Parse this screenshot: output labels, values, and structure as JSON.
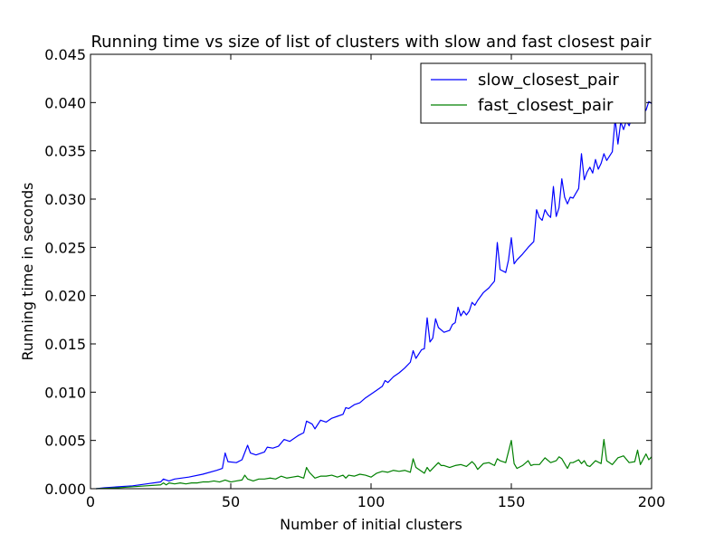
{
  "chart_data": {
    "type": "line",
    "title": "Running time vs size of list of clusters with slow and fast closest pair",
    "xlabel": "Number of initial clusters",
    "ylabel": "Running time in seconds",
    "xlim": [
      0,
      200
    ],
    "ylim": [
      0,
      0.045
    ],
    "xticks": [
      0,
      50,
      100,
      150,
      200
    ],
    "xtick_labels": [
      "0",
      "50",
      "100",
      "150",
      "200"
    ],
    "yticks": [
      0,
      0.005,
      0.01,
      0.015,
      0.02,
      0.025,
      0.03,
      0.035,
      0.04,
      0.045
    ],
    "ytick_labels": [
      "0.000",
      "0.005",
      "0.010",
      "0.015",
      "0.020",
      "0.025",
      "0.030",
      "0.035",
      "0.040",
      "0.045"
    ],
    "grid": false,
    "legend": "top-right",
    "series": [
      {
        "name": "slow_closest_pair",
        "color": "#0000ff",
        "points": [
          [
            2,
            0
          ],
          [
            5,
            0.0001
          ],
          [
            10,
            0.0002
          ],
          [
            15,
            0.0003
          ],
          [
            20,
            0.0005
          ],
          [
            25,
            0.0007
          ],
          [
            26,
            0.001
          ],
          [
            27,
            0.0009
          ],
          [
            28,
            0.0008
          ],
          [
            30,
            0.001
          ],
          [
            35,
            0.0012
          ],
          [
            40,
            0.0015
          ],
          [
            45,
            0.0019
          ],
          [
            47,
            0.0021
          ],
          [
            48,
            0.0037
          ],
          [
            49,
            0.0028
          ],
          [
            52,
            0.0027
          ],
          [
            54,
            0.003
          ],
          [
            56,
            0.0045
          ],
          [
            57,
            0.0037
          ],
          [
            59,
            0.0035
          ],
          [
            62,
            0.0038
          ],
          [
            63,
            0.0043
          ],
          [
            65,
            0.0042
          ],
          [
            67,
            0.0044
          ],
          [
            69,
            0.0051
          ],
          [
            71,
            0.0049
          ],
          [
            74,
            0.0055
          ],
          [
            76,
            0.0058
          ],
          [
            77,
            0.007
          ],
          [
            79,
            0.0067
          ],
          [
            80,
            0.0062
          ],
          [
            82,
            0.0071
          ],
          [
            84,
            0.0069
          ],
          [
            86,
            0.0073
          ],
          [
            88,
            0.0075
          ],
          [
            90,
            0.0077
          ],
          [
            91,
            0.0084
          ],
          [
            92,
            0.0083
          ],
          [
            94,
            0.0087
          ],
          [
            96,
            0.0089
          ],
          [
            98,
            0.0094
          ],
          [
            100,
            0.0098
          ],
          [
            102,
            0.0102
          ],
          [
            104,
            0.0106
          ],
          [
            105,
            0.0112
          ],
          [
            106,
            0.011
          ],
          [
            108,
            0.0116
          ],
          [
            110,
            0.012
          ],
          [
            112,
            0.0125
          ],
          [
            114,
            0.0131
          ],
          [
            115,
            0.0143
          ],
          [
            116,
            0.0135
          ],
          [
            118,
            0.0144
          ],
          [
            119,
            0.0145
          ],
          [
            120,
            0.0177
          ],
          [
            121,
            0.0152
          ],
          [
            122,
            0.0156
          ],
          [
            123,
            0.0176
          ],
          [
            124,
            0.0167
          ],
          [
            126,
            0.0162
          ],
          [
            128,
            0.0164
          ],
          [
            129,
            0.017
          ],
          [
            130,
            0.0172
          ],
          [
            131,
            0.0188
          ],
          [
            132,
            0.0179
          ],
          [
            133,
            0.0184
          ],
          [
            134,
            0.018
          ],
          [
            135,
            0.0184
          ],
          [
            136,
            0.0193
          ],
          [
            137,
            0.019
          ],
          [
            138,
            0.0195
          ],
          [
            140,
            0.0203
          ],
          [
            142,
            0.0208
          ],
          [
            144,
            0.0215
          ],
          [
            145,
            0.0255
          ],
          [
            146,
            0.0227
          ],
          [
            148,
            0.0224
          ],
          [
            149,
            0.0237
          ],
          [
            150,
            0.026
          ],
          [
            151,
            0.0233
          ],
          [
            152,
            0.0237
          ],
          [
            154,
            0.0243
          ],
          [
            156,
            0.025
          ],
          [
            158,
            0.0256
          ],
          [
            159,
            0.0289
          ],
          [
            160,
            0.0281
          ],
          [
            161,
            0.0278
          ],
          [
            162,
            0.0289
          ],
          [
            163,
            0.0284
          ],
          [
            164,
            0.0281
          ],
          [
            165,
            0.0313
          ],
          [
            166,
            0.0282
          ],
          [
            167,
            0.0291
          ],
          [
            168,
            0.0321
          ],
          [
            169,
            0.0302
          ],
          [
            170,
            0.0295
          ],
          [
            171,
            0.0302
          ],
          [
            172,
            0.0301
          ],
          [
            173,
            0.0306
          ],
          [
            174,
            0.0311
          ],
          [
            175,
            0.0347
          ],
          [
            176,
            0.032
          ],
          [
            177,
            0.0328
          ],
          [
            178,
            0.0333
          ],
          [
            179,
            0.0327
          ],
          [
            180,
            0.0341
          ],
          [
            181,
            0.0331
          ],
          [
            182,
            0.0337
          ],
          [
            183,
            0.0347
          ],
          [
            184,
            0.034
          ],
          [
            186,
            0.0349
          ],
          [
            187,
            0.0383
          ],
          [
            188,
            0.0357
          ],
          [
            189,
            0.038
          ],
          [
            190,
            0.0372
          ],
          [
            191,
            0.0381
          ],
          [
            192,
            0.0376
          ],
          [
            193,
            0.0385
          ],
          [
            195,
            0.0386
          ],
          [
            196,
            0.0381
          ],
          [
            197,
            0.039
          ],
          [
            198,
            0.0392
          ],
          [
            199,
            0.0401
          ],
          [
            200,
            0.0399
          ]
        ]
      },
      {
        "name": "fast_closest_pair",
        "color": "#008000",
        "points": [
          [
            2,
            0
          ],
          [
            10,
            0.0001
          ],
          [
            20,
            0.0003
          ],
          [
            25,
            0.0004
          ],
          [
            26,
            0.0006
          ],
          [
            27,
            0.0004
          ],
          [
            28,
            0.0006
          ],
          [
            30,
            0.0005
          ],
          [
            32,
            0.0006
          ],
          [
            34,
            0.0005
          ],
          [
            36,
            0.0006
          ],
          [
            38,
            0.0006
          ],
          [
            40,
            0.0007
          ],
          [
            42,
            0.0007
          ],
          [
            44,
            0.0008
          ],
          [
            46,
            0.0007
          ],
          [
            48,
            0.0009
          ],
          [
            50,
            0.0007
          ],
          [
            52,
            0.0008
          ],
          [
            54,
            0.0009
          ],
          [
            55,
            0.0014
          ],
          [
            56,
            0.001
          ],
          [
            58,
            0.0008
          ],
          [
            60,
            0.001
          ],
          [
            62,
            0.001
          ],
          [
            64,
            0.0011
          ],
          [
            66,
            0.001
          ],
          [
            68,
            0.0013
          ],
          [
            70,
            0.0011
          ],
          [
            72,
            0.0012
          ],
          [
            74,
            0.0013
          ],
          [
            76,
            0.0011
          ],
          [
            77,
            0.0022
          ],
          [
            78,
            0.0017
          ],
          [
            80,
            0.0011
          ],
          [
            82,
            0.0013
          ],
          [
            84,
            0.0013
          ],
          [
            86,
            0.0014
          ],
          [
            88,
            0.0012
          ],
          [
            90,
            0.0014
          ],
          [
            91,
            0.0011
          ],
          [
            92,
            0.0014
          ],
          [
            94,
            0.0013
          ],
          [
            96,
            0.0015
          ],
          [
            98,
            0.0014
          ],
          [
            100,
            0.0012
          ],
          [
            102,
            0.0016
          ],
          [
            104,
            0.0018
          ],
          [
            106,
            0.0017
          ],
          [
            108,
            0.0019
          ],
          [
            110,
            0.0018
          ],
          [
            112,
            0.0019
          ],
          [
            114,
            0.0017
          ],
          [
            115,
            0.0031
          ],
          [
            116,
            0.0022
          ],
          [
            118,
            0.0018
          ],
          [
            119,
            0.0016
          ],
          [
            120,
            0.0022
          ],
          [
            121,
            0.0018
          ],
          [
            122,
            0.0021
          ],
          [
            124,
            0.0027
          ],
          [
            125,
            0.0024
          ],
          [
            126,
            0.0024
          ],
          [
            128,
            0.0022
          ],
          [
            130,
            0.0024
          ],
          [
            132,
            0.0025
          ],
          [
            134,
            0.0023
          ],
          [
            136,
            0.0028
          ],
          [
            137,
            0.0025
          ],
          [
            138,
            0.002
          ],
          [
            140,
            0.0026
          ],
          [
            142,
            0.0027
          ],
          [
            144,
            0.0024
          ],
          [
            145,
            0.0031
          ],
          [
            146,
            0.0029
          ],
          [
            148,
            0.0027
          ],
          [
            150,
            0.005
          ],
          [
            151,
            0.0026
          ],
          [
            152,
            0.0021
          ],
          [
            154,
            0.0024
          ],
          [
            156,
            0.0029
          ],
          [
            157,
            0.0024
          ],
          [
            158,
            0.0025
          ],
          [
            160,
            0.0025
          ],
          [
            162,
            0.0032
          ],
          [
            164,
            0.0027
          ],
          [
            166,
            0.0029
          ],
          [
            167,
            0.0033
          ],
          [
            168,
            0.0031
          ],
          [
            170,
            0.0021
          ],
          [
            171,
            0.0027
          ],
          [
            172,
            0.0027
          ],
          [
            174,
            0.003
          ],
          [
            175,
            0.0026
          ],
          [
            176,
            0.0029
          ],
          [
            177,
            0.0024
          ],
          [
            178,
            0.0023
          ],
          [
            180,
            0.0029
          ],
          [
            182,
            0.0026
          ],
          [
            183,
            0.0051
          ],
          [
            184,
            0.0029
          ],
          [
            186,
            0.0025
          ],
          [
            188,
            0.0032
          ],
          [
            189,
            0.0033
          ],
          [
            190,
            0.0034
          ],
          [
            192,
            0.0027
          ],
          [
            194,
            0.0028
          ],
          [
            195,
            0.004
          ],
          [
            196,
            0.0025
          ],
          [
            198,
            0.0036
          ],
          [
            199,
            0.003
          ],
          [
            200,
            0.0033
          ]
        ]
      }
    ]
  }
}
